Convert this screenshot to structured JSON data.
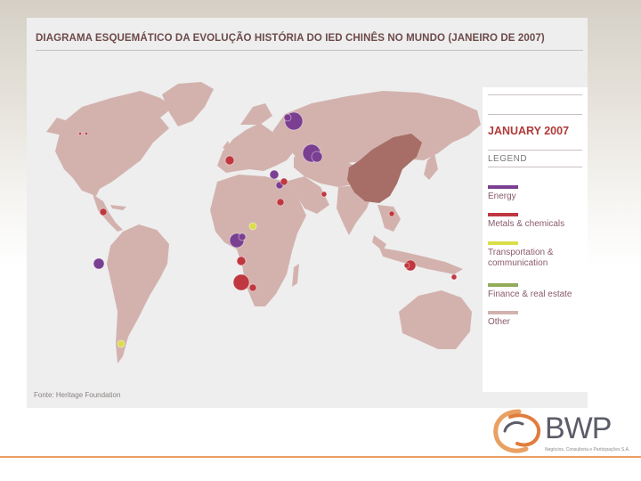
{
  "map": {
    "title": "DIAGRAMA ESQUEMÁTICO DA EVOLUÇÃO HISTÓRIA DO IED CHINÊS NO MUNDO (JANEIRO DE 2007)",
    "source": "Fonte: Heritage Foundation",
    "colors": {
      "land": "#d3b2ae",
      "china": "#a66e66",
      "panel": "#eeeeee"
    },
    "highlighted_country": "China",
    "markers": [
      {
        "category": "energy"
      },
      {
        "category": "energy"
      },
      {
        "category": "energy"
      },
      {
        "category": "energy"
      },
      {
        "category": "energy"
      },
      {
        "category": "energy"
      },
      {
        "category": "energy"
      },
      {
        "category": "energy"
      },
      {
        "category": "energy"
      },
      {
        "category": "metals"
      },
      {
        "category": "metals"
      },
      {
        "category": "metals"
      },
      {
        "category": "metals"
      },
      {
        "category": "metals"
      },
      {
        "category": "metals"
      },
      {
        "category": "metals"
      },
      {
        "category": "metals"
      },
      {
        "category": "metals"
      },
      {
        "category": "metals"
      },
      {
        "category": "metals"
      },
      {
        "category": "metals"
      },
      {
        "category": "metals"
      },
      {
        "category": "metals"
      },
      {
        "category": "transport"
      },
      {
        "category": "transport"
      }
    ]
  },
  "legend": {
    "title": "JANUARY 2007",
    "heading": "LEGEND",
    "items": [
      {
        "key": "energy",
        "label": "Energy",
        "color": "#7b3f91"
      },
      {
        "key": "metals",
        "label": "Metals & chemicals",
        "color": "#c0383f"
      },
      {
        "key": "transport",
        "label": "Transportation & communication",
        "color": "#d9de4a"
      },
      {
        "key": "finance",
        "label": "Finance & real estate",
        "color": "#93ac5a"
      },
      {
        "key": "other",
        "label": "Other",
        "color": "#d3b2ae"
      }
    ]
  },
  "brand": {
    "name": "BWP",
    "tagline": "Negócios, Consultoria e Participações S.A.",
    "accent": "#e9a062"
  }
}
